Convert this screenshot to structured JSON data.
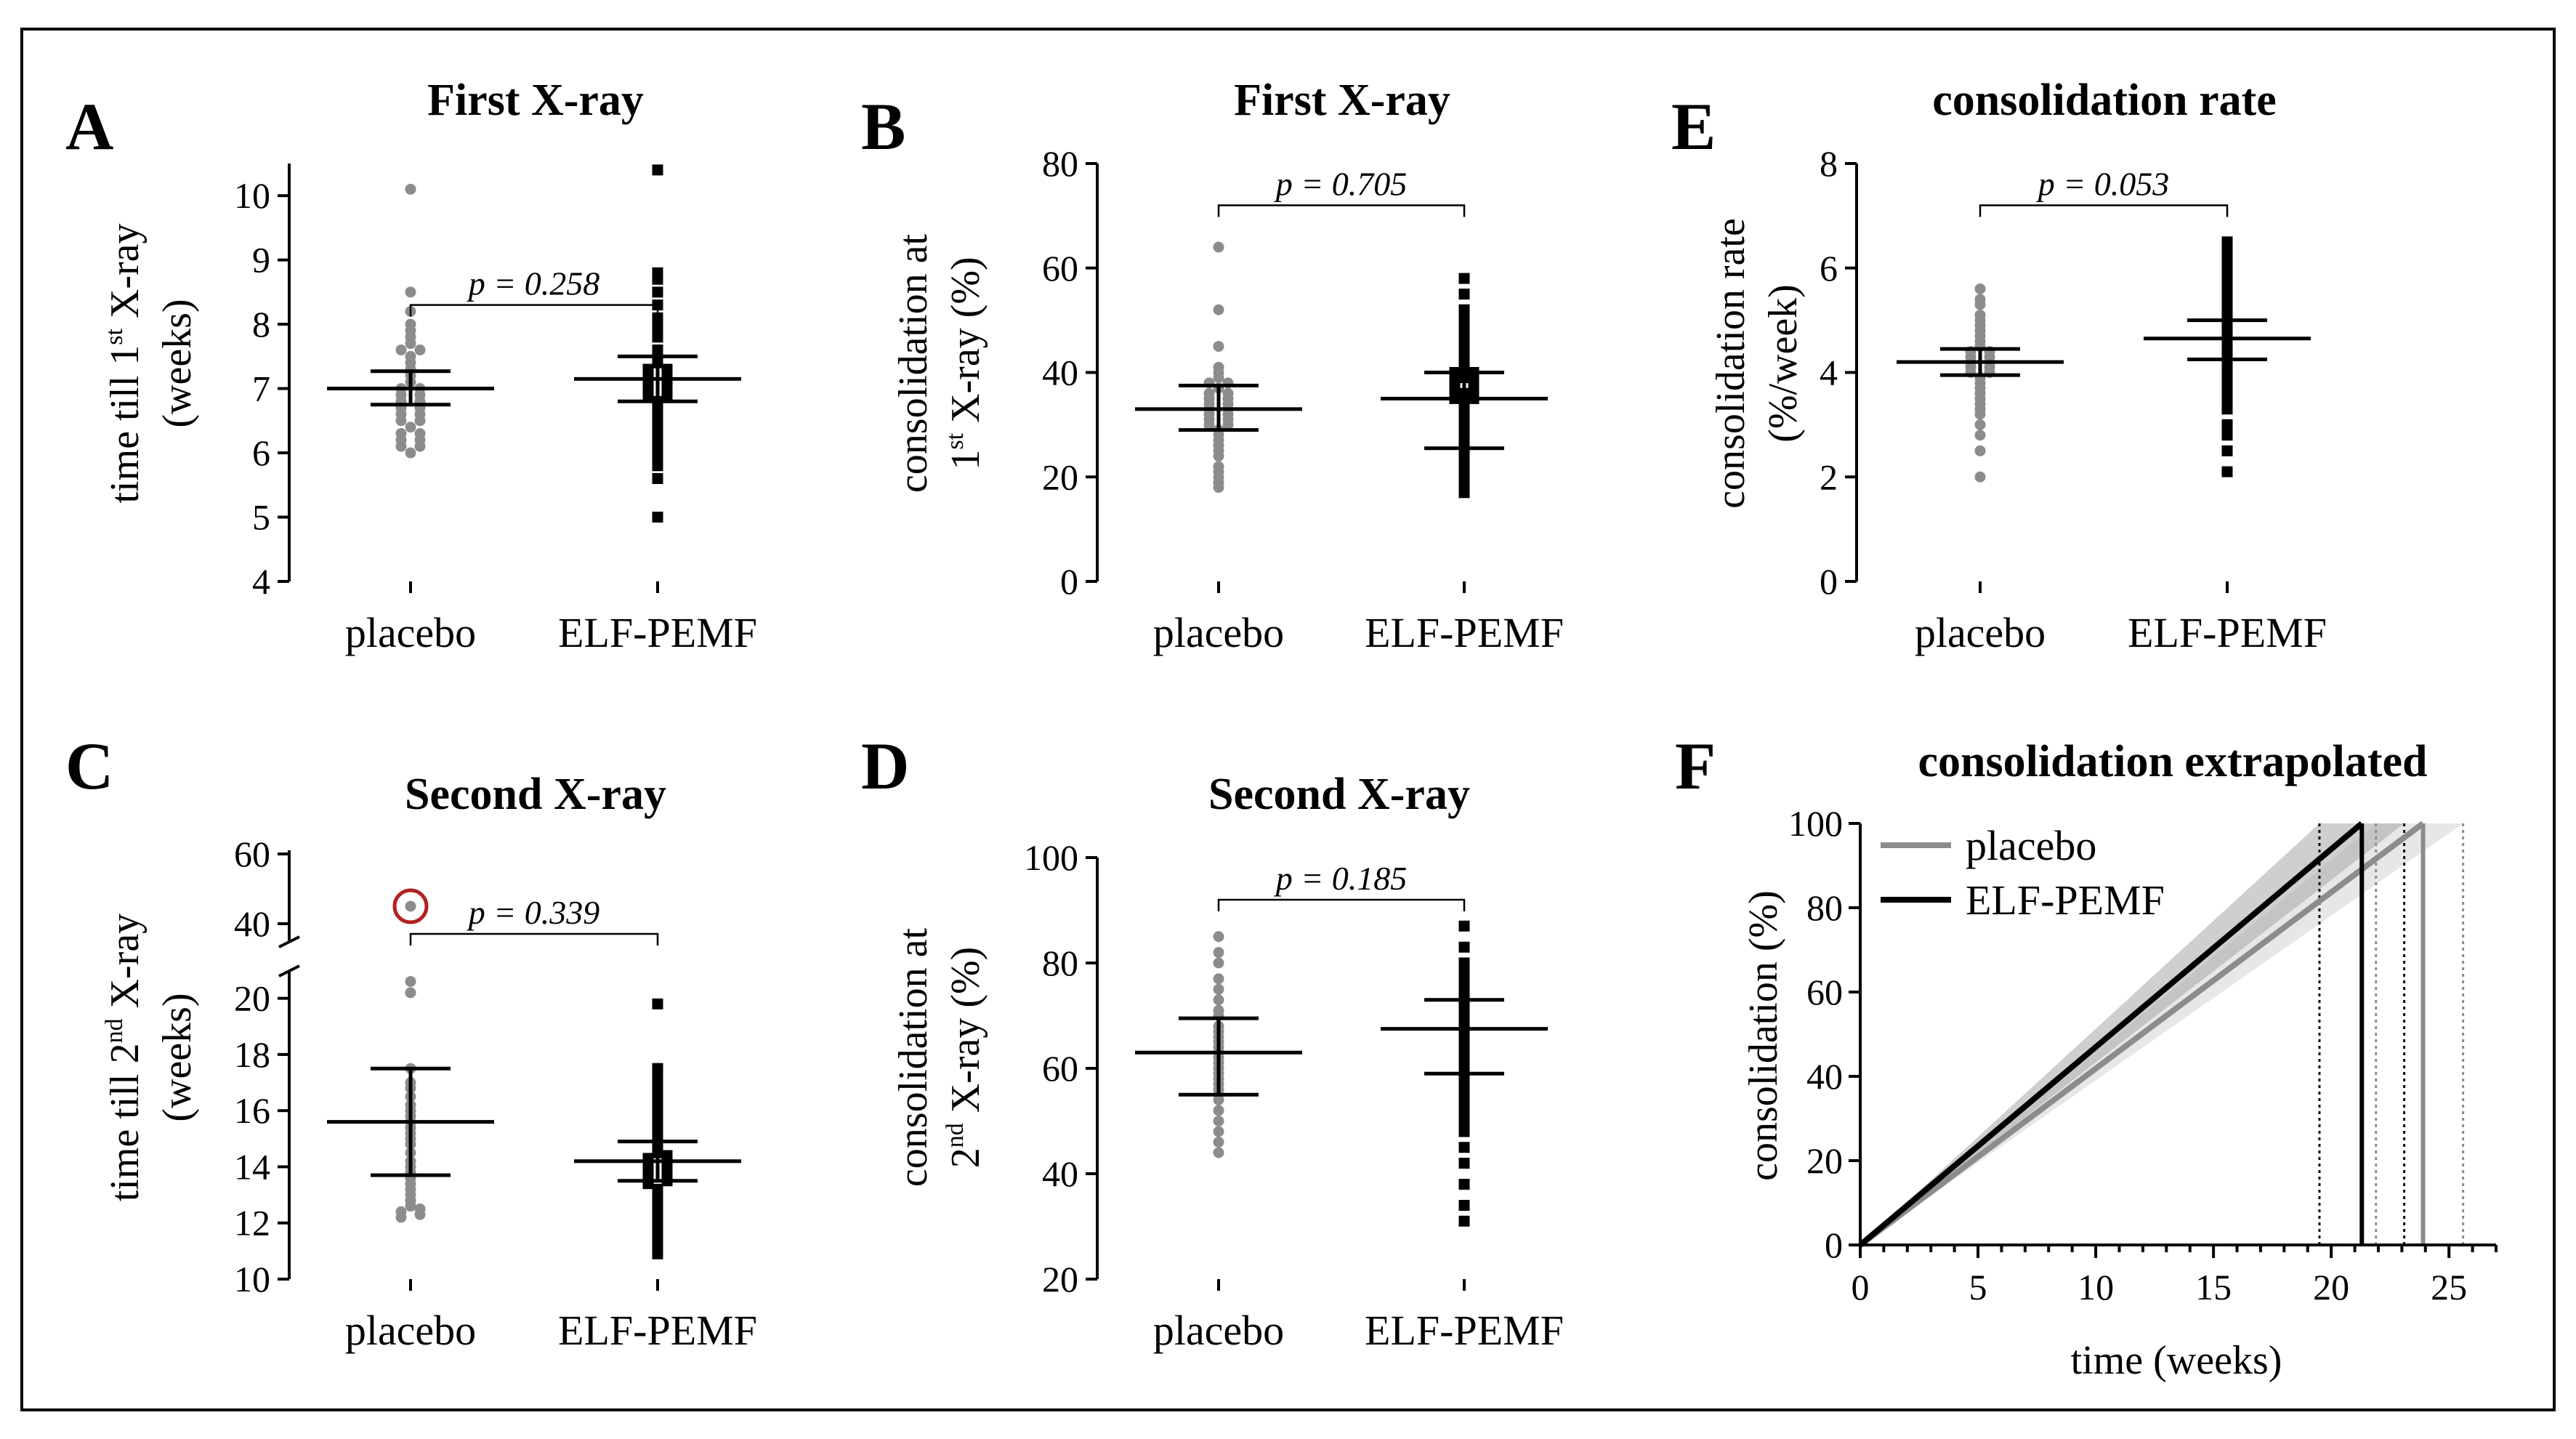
{
  "colors": {
    "placebo": "#8c8c8c",
    "pemf": "#000000",
    "outlier_ring": "#b22222",
    "band_placebo": "#d4d4d4",
    "band_pemf": "#a8a8a8",
    "frame": "#000000"
  },
  "chart_data": [
    {
      "id": "A",
      "type": "scatter",
      "letter": "A",
      "title": "First X-ray",
      "ylabel_line1_pre": "time till 1",
      "ylabel_line1_sup": "st",
      "ylabel_line1_post": " X-ray",
      "ylabel_line2": "(weeks)",
      "categories": [
        "placebo",
        "ELF-PEMF"
      ],
      "ylim": [
        4,
        10.5
      ],
      "yticks": [
        4,
        5,
        6,
        7,
        8,
        9,
        10
      ],
      "ytick_labels": [
        "4",
        "5",
        "6",
        "7",
        "8",
        "9",
        "10"
      ],
      "p_label": "p = 0.258",
      "p_y": 8.3,
      "series": [
        {
          "group": "placebo",
          "mean": 7.0,
          "ci_low": 6.75,
          "ci_high": 7.27,
          "points": [
            10.1,
            8.5,
            8.2,
            8.0,
            7.9,
            7.8,
            7.7,
            7.6,
            7.6,
            7.5,
            7.4,
            7.3,
            7.2,
            7.1,
            7.0,
            7.0,
            6.9,
            6.9,
            6.8,
            6.8,
            6.7,
            6.7,
            6.6,
            6.6,
            6.5,
            6.5,
            6.4,
            6.3,
            6.3,
            6.2,
            6.2,
            6.1,
            6.1,
            6.0
          ]
        },
        {
          "group": "pemf",
          "mean": 7.15,
          "ci_low": 6.8,
          "ci_high": 7.5,
          "points": [
            10.4,
            8.8,
            8.7,
            8.5,
            8.3,
            8.1,
            8.0,
            7.9,
            7.8,
            7.6,
            7.5,
            7.4,
            7.3,
            7.3,
            7.2,
            7.2,
            7.1,
            7.1,
            7.0,
            7.0,
            6.9,
            6.9,
            6.8,
            6.7,
            6.6,
            6.5,
            6.4,
            6.3,
            6.2,
            6.1,
            6.0,
            5.9,
            5.8,
            5.6,
            5.0
          ]
        }
      ]
    },
    {
      "id": "B",
      "type": "scatter",
      "letter": "B",
      "title": "First X-ray",
      "ylabel_line1": "consolidation at",
      "ylabel_line2_pre": "1",
      "ylabel_line2_sup": "st",
      "ylabel_line2_post": " X-ray (%)",
      "categories": [
        "placebo",
        "ELF-PEMF"
      ],
      "ylim": [
        0,
        80
      ],
      "yticks": [
        0,
        20,
        40,
        60,
        80
      ],
      "ytick_labels": [
        "0",
        "20",
        "40",
        "60",
        "80"
      ],
      "p_label": "p = 0.705",
      "p_y": 72,
      "series": [
        {
          "group": "placebo",
          "mean": 33,
          "ci_low": 29,
          "ci_high": 37.5,
          "points": [
            64,
            52,
            45,
            41,
            40,
            39,
            38,
            38,
            37,
            36,
            36,
            35,
            35,
            34,
            34,
            33,
            33,
            32,
            32,
            31,
            31,
            30,
            30,
            29,
            28,
            27,
            26,
            25,
            24,
            22,
            21,
            20,
            19,
            18
          ]
        },
        {
          "group": "pemf",
          "mean": 35,
          "ci_low": 25.5,
          "ci_high": 40,
          "points": [
            58,
            55,
            52,
            50,
            48,
            46,
            44,
            42,
            41,
            40,
            40,
            39,
            38,
            38,
            37,
            37,
            36,
            35,
            35,
            34,
            33,
            32,
            31,
            30,
            29,
            28,
            27,
            26,
            25,
            24,
            23,
            22,
            21,
            20,
            19,
            18,
            17
          ]
        }
      ]
    },
    {
      "id": "E",
      "type": "scatter",
      "letter": "E",
      "title": "consolidation rate",
      "ylabel_line1": "consolidation rate",
      "ylabel_line2": "(%/week)",
      "categories": [
        "placebo",
        "ELF-PEMF"
      ],
      "ylim": [
        0,
        8
      ],
      "yticks": [
        0,
        2,
        4,
        6,
        8
      ],
      "ytick_labels": [
        "0",
        "2",
        "4",
        "6",
        "8"
      ],
      "p_label": "p = 0.053",
      "p_y": 7.2,
      "series": [
        {
          "group": "placebo",
          "mean": 4.2,
          "ci_low": 3.95,
          "ci_high": 4.45,
          "points": [
            5.6,
            5.4,
            5.3,
            5.1,
            5.0,
            4.9,
            4.8,
            4.7,
            4.6,
            4.5,
            4.4,
            4.4,
            4.3,
            4.3,
            4.2,
            4.2,
            4.1,
            4.1,
            4.0,
            4.0,
            3.9,
            3.8,
            3.7,
            3.6,
            3.5,
            3.4,
            3.3,
            3.2,
            3.0,
            2.8,
            2.5,
            2.0
          ]
        },
        {
          "group": "pemf",
          "mean": 4.65,
          "ci_low": 4.25,
          "ci_high": 5.0,
          "points": [
            6.5,
            6.4,
            6.3,
            6.1,
            6.0,
            5.8,
            5.6,
            5.5,
            5.4,
            5.2,
            5.1,
            5.0,
            4.9,
            4.8,
            4.7,
            4.6,
            4.5,
            4.4,
            4.3,
            4.2,
            4.1,
            4.0,
            3.9,
            3.7,
            3.5,
            3.3,
            3.0,
            2.8,
            2.5,
            2.1
          ]
        }
      ]
    },
    {
      "id": "C",
      "type": "scatter",
      "letter": "C",
      "title": "Second X-ray",
      "ylabel_line1_pre": "time till 2",
      "ylabel_line1_sup": "nd",
      "ylabel_line1_post": " X-ray",
      "ylabel_line2": "(weeks)",
      "categories": [
        "placebo",
        "ELF-PEMF"
      ],
      "ylim": [
        10,
        21
      ],
      "yticks": [
        10,
        12,
        14,
        16,
        18,
        20
      ],
      "ytick_labels": [
        "10",
        "12",
        "14",
        "16",
        "18",
        "20"
      ],
      "broken_axis": {
        "upper_ylim": [
          35,
          60
        ],
        "upper_yticks": [
          40,
          60
        ],
        "upper_ytick_labels": [
          "40",
          "60"
        ]
      },
      "outlier": {
        "group": "placebo",
        "value": 45
      },
      "p_label": "p = 0.339",
      "series": [
        {
          "group": "placebo",
          "mean": 15.6,
          "ci_low": 13.7,
          "ci_high": 17.5,
          "points": [
            20.6,
            20.2,
            17.5,
            17.0,
            16.8,
            16.5,
            16.2,
            16.0,
            15.8,
            15.6,
            15.4,
            15.2,
            15.0,
            14.8,
            14.5,
            14.2,
            14.0,
            13.8,
            13.6,
            13.4,
            13.2,
            13.0,
            12.8,
            12.6,
            12.5,
            12.4,
            12.3,
            12.2
          ]
        },
        {
          "group": "pemf",
          "mean": 14.2,
          "ci_low": 13.5,
          "ci_high": 14.9,
          "points": [
            19.8,
            17.5,
            17.2,
            16.9,
            16.6,
            16.4,
            16.1,
            15.8,
            15.5,
            15.3,
            15.1,
            14.9,
            14.7,
            14.5,
            14.4,
            14.3,
            14.2,
            14.1,
            14.0,
            13.9,
            13.8,
            13.7,
            13.5,
            13.4,
            13.2,
            13.0,
            12.8,
            12.6,
            12.4,
            12.2,
            12.0,
            11.8,
            11.5,
            11.2,
            10.9
          ]
        }
      ]
    },
    {
      "id": "D",
      "type": "scatter",
      "letter": "D",
      "title": "Second X-ray",
      "ylabel_line1": "consolidation at",
      "ylabel_line2_pre": "2",
      "ylabel_line2_sup": "nd",
      "ylabel_line2_post": " X-ray (%)",
      "categories": [
        "placebo",
        "ELF-PEMF"
      ],
      "ylim": [
        20,
        100
      ],
      "yticks": [
        20,
        40,
        60,
        80,
        100
      ],
      "ytick_labels": [
        "20",
        "40",
        "60",
        "80",
        "100"
      ],
      "p_label": "p = 0.185",
      "p_y": 92,
      "series": [
        {
          "group": "placebo",
          "mean": 63,
          "ci_low": 55,
          "ci_high": 69.5,
          "points": [
            85,
            82,
            80,
            77,
            75,
            73,
            71,
            70,
            68,
            67,
            66,
            65,
            64,
            63,
            62,
            61,
            60,
            59,
            58,
            57,
            56,
            55,
            54,
            52,
            50,
            48,
            46,
            44
          ]
        },
        {
          "group": "pemf",
          "mean": 67.5,
          "ci_low": 59,
          "ci_high": 73,
          "points": [
            87,
            83,
            80,
            79,
            78,
            77,
            76,
            75,
            74,
            73,
            72,
            71,
            70,
            69,
            68,
            67,
            66,
            65,
            64,
            63,
            62,
            61,
            60,
            58,
            56,
            54,
            52,
            50,
            48,
            45,
            42,
            38,
            34,
            31
          ]
        }
      ]
    },
    {
      "id": "F",
      "type": "line",
      "letter": "F",
      "title": "consolidation extrapolated",
      "xlabel": "time (weeks)",
      "ylabel": "consolidation (%)",
      "xlim": [
        0,
        27
      ],
      "ylim": [
        0,
        100
      ],
      "xticks": [
        0,
        5,
        10,
        15,
        20,
        25
      ],
      "xtick_labels": [
        "0",
        "5",
        "10",
        "15",
        "20",
        "25"
      ],
      "yticks": [
        0,
        20,
        40,
        60,
        80,
        100
      ],
      "ytick_labels": [
        "0",
        "20",
        "40",
        "60",
        "80",
        "100"
      ],
      "legend": "top-left",
      "series": [
        {
          "name": "placebo",
          "x": [
            0,
            23.9
          ],
          "y": [
            0,
            100
          ],
          "ci_end_x": [
            21.9,
            25.6
          ]
        },
        {
          "name": "ELF-PEMF",
          "x": [
            0,
            21.3
          ],
          "y": [
            0,
            100
          ],
          "ci_end_x": [
            19.5,
            23.1
          ]
        }
      ]
    }
  ]
}
